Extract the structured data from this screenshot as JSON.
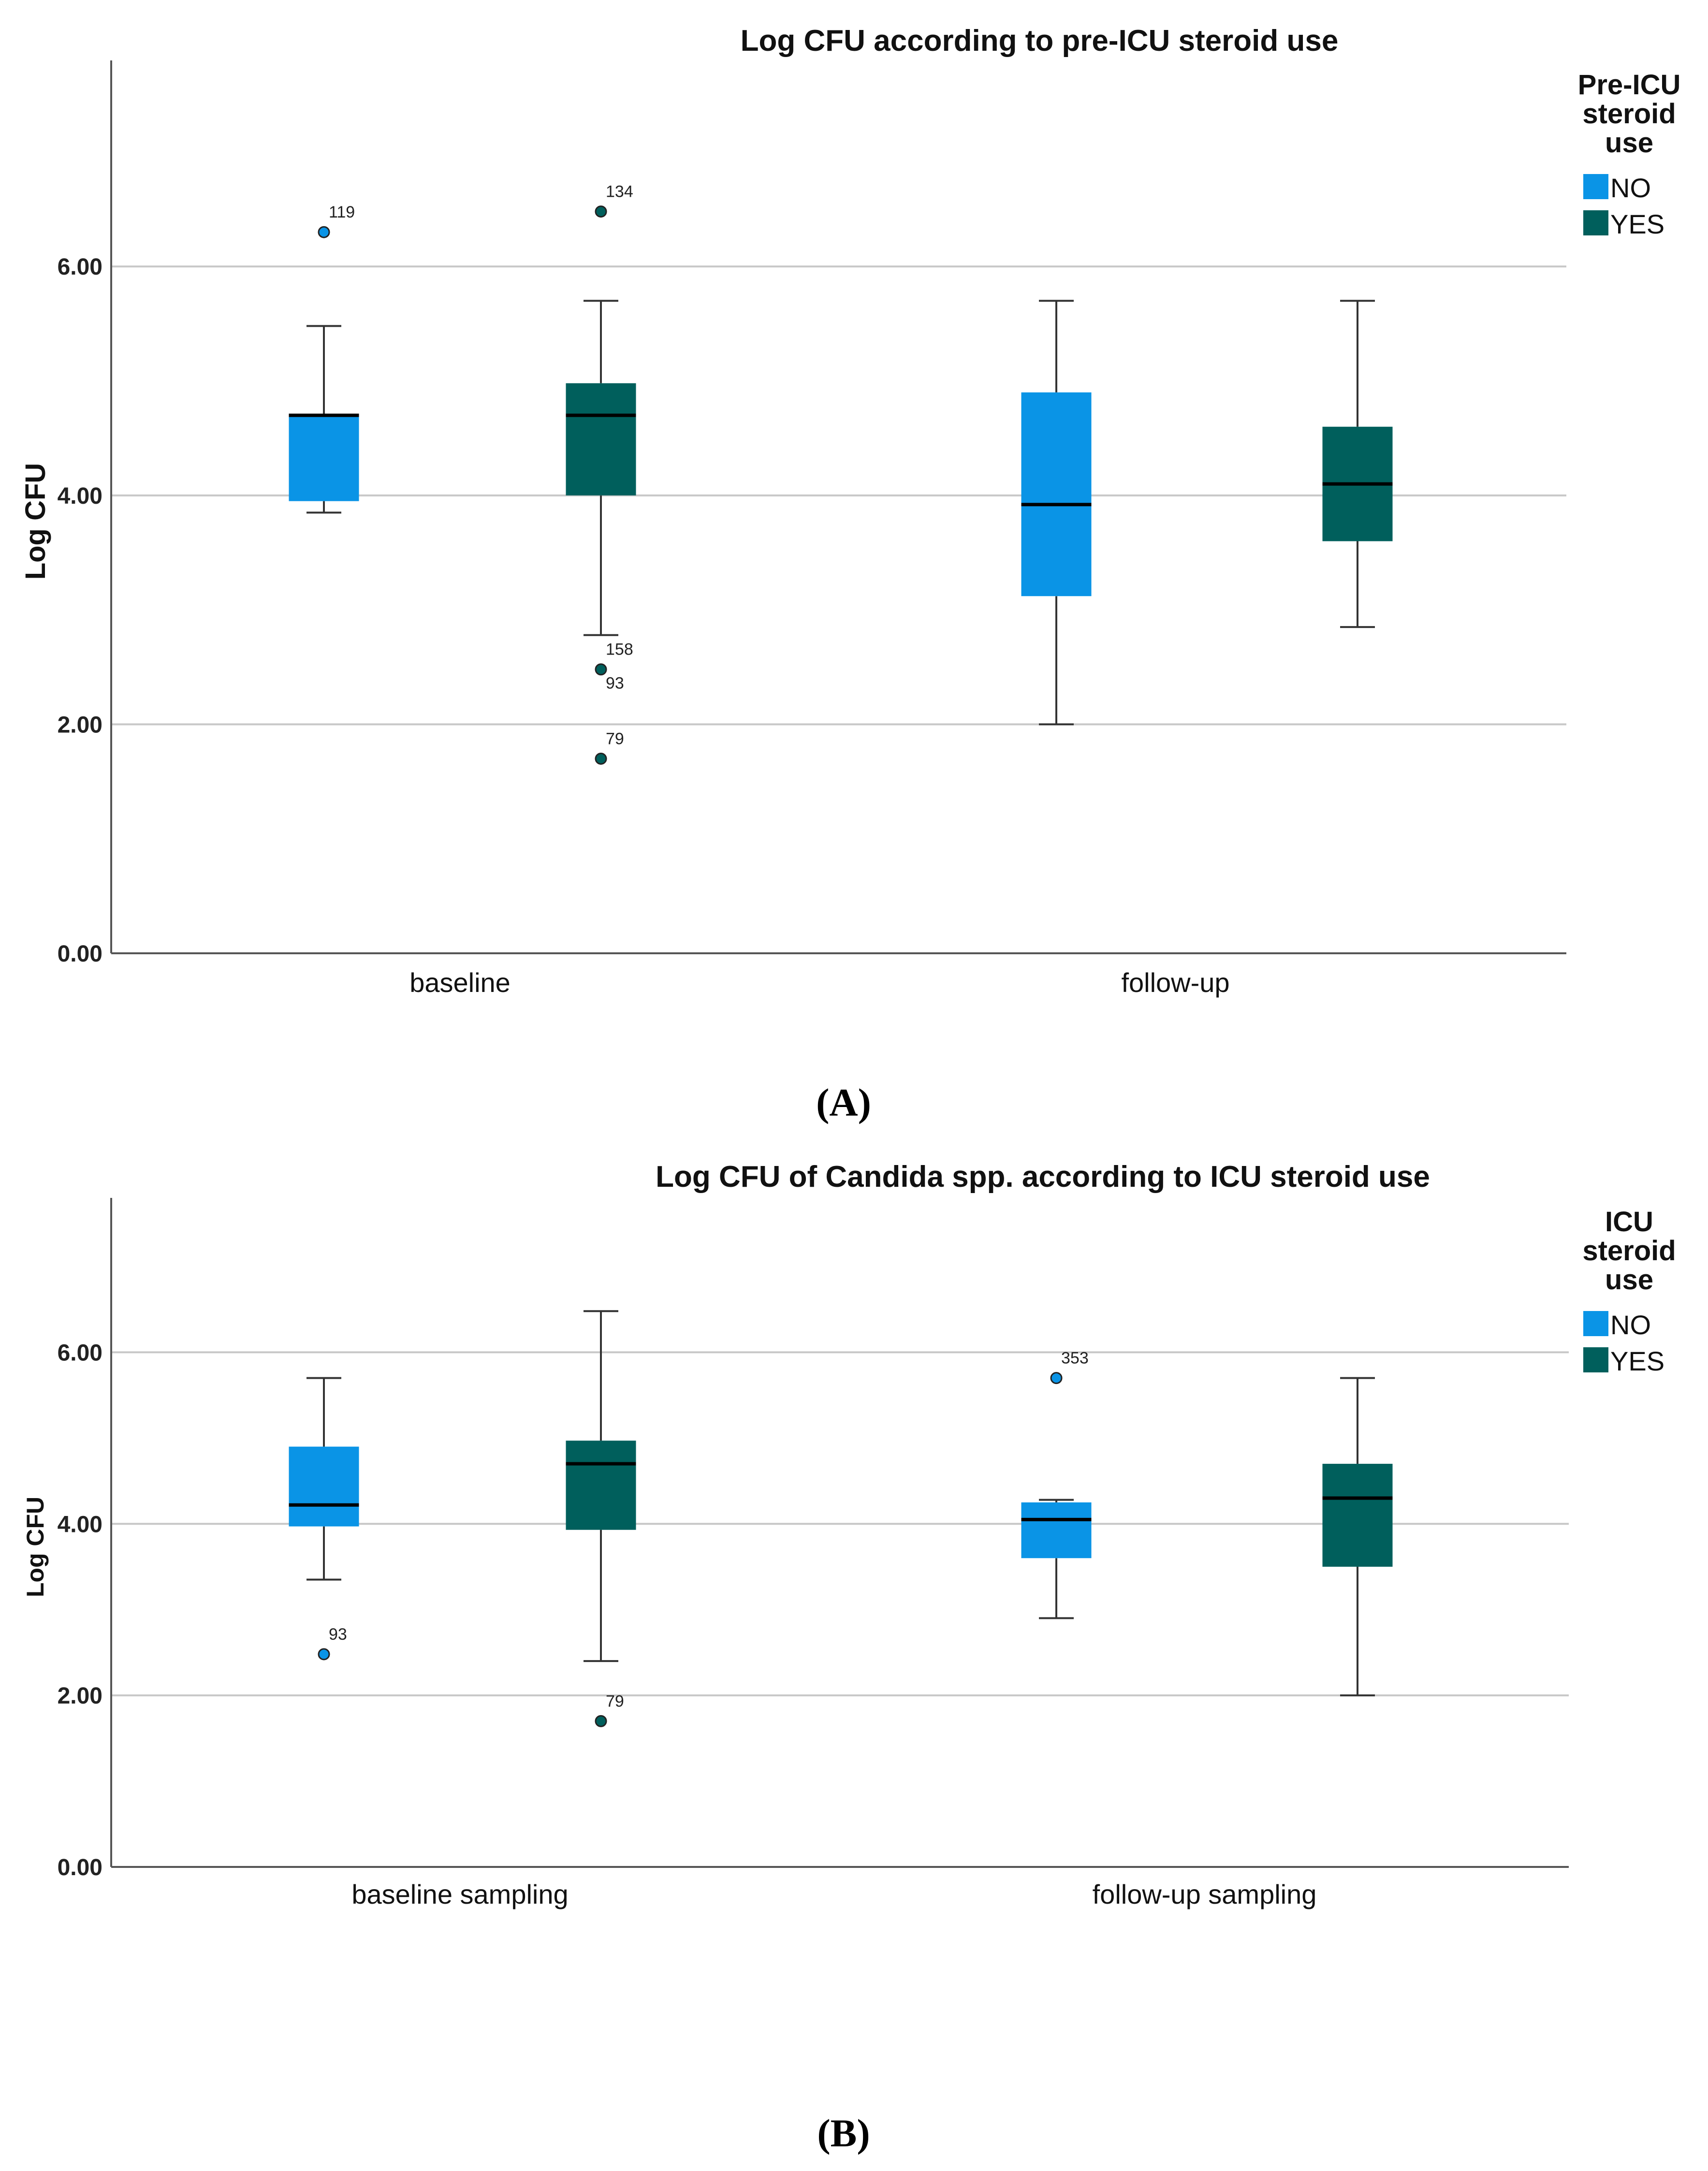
{
  "colors": {
    "no": "#0A94E6",
    "yes": "#005F5C",
    "grid": "#C8C8C8",
    "axis": "#555555"
  },
  "panels": [
    {
      "label": "(A)"
    },
    {
      "label": "(B)"
    }
  ],
  "chart_data": [
    {
      "type": "boxplot",
      "title": "Log CFU according to pre-ICU steroid use",
      "xlabel": "",
      "ylabel": "Log CFU",
      "ylim": [
        0,
        7.8
      ],
      "yticks": [
        0,
        2,
        4,
        6
      ],
      "ytick_labels": [
        "0.00",
        "2.00",
        "4.00",
        "6.00"
      ],
      "categories": [
        "baseline",
        "follow-up"
      ],
      "legend": {
        "title": "Pre-ICU steroid use",
        "title_lines": [
          "Pre-ICU",
          "steroid",
          "use"
        ],
        "entries": [
          "NO",
          "YES"
        ],
        "position": "right"
      },
      "series": [
        {
          "name": "NO",
          "color": "#0A94E6",
          "boxes": [
            {
              "category": "baseline",
              "whisker_low": 3.85,
              "q1": 3.95,
              "median": 4.7,
              "q3": 4.7,
              "whisker_high": 5.48,
              "outliers": [
                {
                  "value": 6.3,
                  "label": "119"
                }
              ]
            },
            {
              "category": "follow-up",
              "whisker_low": 2.0,
              "q1": 3.12,
              "median": 3.92,
              "q3": 4.9,
              "whisker_high": 5.7,
              "outliers": []
            }
          ]
        },
        {
          "name": "YES",
          "color": "#005F5C",
          "boxes": [
            {
              "category": "baseline",
              "whisker_low": 2.78,
              "q1": 4.0,
              "median": 4.7,
              "q3": 4.98,
              "whisker_high": 5.7,
              "outliers": [
                {
                  "value": 6.48,
                  "label": "134"
                },
                {
                  "value": 2.48,
                  "label": "158"
                },
                {
                  "value": 2.48,
                  "label": "93"
                },
                {
                  "value": 1.7,
                  "label": "79"
                }
              ]
            },
            {
              "category": "follow-up",
              "whisker_low": 2.85,
              "q1": 3.6,
              "median": 4.1,
              "q3": 4.6,
              "whisker_high": 5.7,
              "outliers": []
            }
          ]
        }
      ]
    },
    {
      "type": "boxplot",
      "title": "Log CFU of Candida spp. according to ICU steroid use",
      "xlabel": "",
      "ylabel": "Log CFU",
      "ylim": [
        0,
        7.8
      ],
      "yticks": [
        0,
        2,
        4,
        6
      ],
      "ytick_labels": [
        "0.00",
        "2.00",
        "4.00",
        "6.00"
      ],
      "categories": [
        "baseline sampling",
        "follow-up sampling"
      ],
      "legend": {
        "title": "ICU steroid use",
        "title_lines": [
          "ICU",
          "steroid",
          "use"
        ],
        "entries": [
          "NO",
          "YES"
        ],
        "position": "right"
      },
      "series": [
        {
          "name": "NO",
          "color": "#0A94E6",
          "boxes": [
            {
              "category": "baseline sampling",
              "whisker_low": 3.35,
              "q1": 3.97,
              "median": 4.22,
              "q3": 4.9,
              "whisker_high": 5.7,
              "outliers": [
                {
                  "value": 2.48,
                  "label": "93"
                }
              ]
            },
            {
              "category": "follow-up sampling",
              "whisker_low": 2.9,
              "q1": 3.6,
              "median": 4.05,
              "q3": 4.25,
              "whisker_high": 4.28,
              "outliers": [
                {
                  "value": 5.7,
                  "label": "353"
                }
              ]
            }
          ]
        },
        {
          "name": "YES",
          "color": "#005F5C",
          "boxes": [
            {
              "category": "baseline sampling",
              "whisker_low": 2.4,
              "q1": 3.93,
              "median": 4.7,
              "q3": 4.97,
              "whisker_high": 6.48,
              "outliers": [
                {
                  "value": 1.7,
                  "label": "79"
                }
              ]
            },
            {
              "category": "follow-up sampling",
              "whisker_low": 2.0,
              "q1": 3.5,
              "median": 4.3,
              "q3": 4.7,
              "whisker_high": 5.7,
              "outliers": []
            }
          ]
        }
      ]
    }
  ]
}
